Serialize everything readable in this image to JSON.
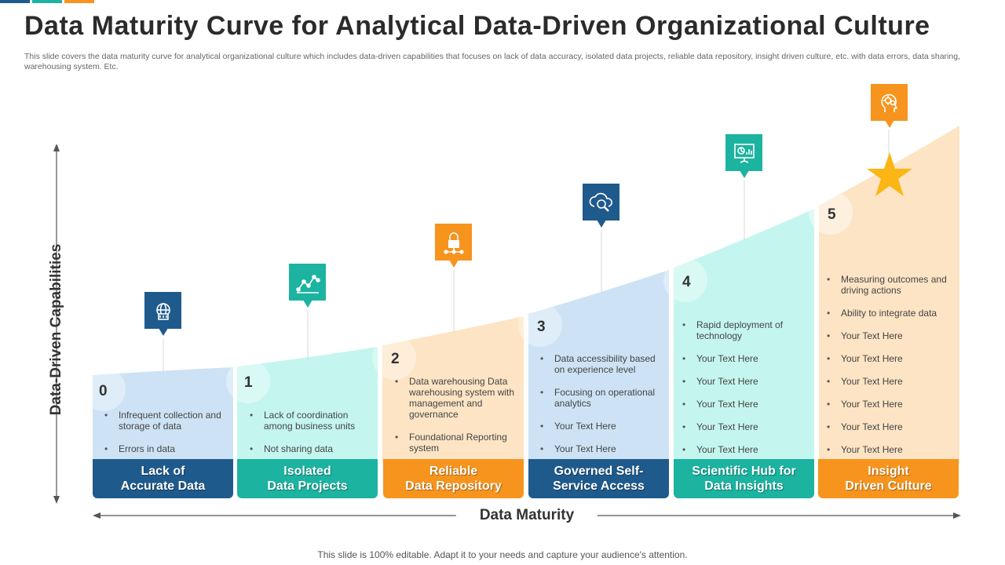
{
  "title": "Data Maturity Curve for Analytical Data-Driven Organizational Culture",
  "subtitle": "This slide covers the data maturity curve for analytical organizational culture which includes data-driven capabilities that focuses on lack of data accuracy, isolated data projects, reliable data repository, insight driven culture, etc. with data errors, data sharing, warehousing system. Etc.",
  "axes": {
    "y_label": "Data-Driven Capabilities",
    "x_label": "Data Maturity"
  },
  "colors": {
    "blue_dark": "#1f5a8c",
    "teal": "#1cb3a0",
    "orange": "#f7941d",
    "light_blue": "#cde3f5",
    "light_teal": "#c4f6ef",
    "light_orange": "#fde4c4"
  },
  "stages": [
    {
      "number": "0",
      "name": "Lack of\nAccurate Data",
      "icon": "circuit-globe-icon",
      "bullets": [
        "Infrequent collection and storage of data",
        "Errors in data"
      ]
    },
    {
      "number": "1",
      "name": "Isolated\nData Projects",
      "icon": "network-chart-icon",
      "bullets": [
        "Lack of coordination among business units",
        "Not sharing data"
      ]
    },
    {
      "number": "2",
      "name": "Reliable\nData Repository",
      "icon": "lock-network-icon",
      "bullets": [
        "Data warehousing Data warehousing system with management and governance",
        "Foundational Reporting system"
      ]
    },
    {
      "number": "3",
      "name": "Governed Self-\nService Access",
      "icon": "cloud-search-icon",
      "bullets": [
        "Data accessibility based on experience level",
        "Focusing on operational analytics",
        "Your Text Here",
        "Your Text Here"
      ]
    },
    {
      "number": "4",
      "name": "Scientific Hub for\nData Insights",
      "icon": "presentation-board-icon",
      "bullets": [
        "Rapid deployment of technology",
        "Your Text Here",
        "Your Text Here",
        "Your Text Here",
        "Your Text Here",
        "Your Text Here"
      ]
    },
    {
      "number": "5",
      "name": "Insight\nDriven Culture",
      "icon": "brain-gears-icon",
      "bullets": [
        "Measuring outcomes and driving actions",
        "Ability to integrate data",
        "Your Text Here",
        "Your Text Here",
        "Your Text Here",
        "Your Text Here",
        "Your Text Here",
        "Your Text Here"
      ]
    }
  ],
  "footer": "This slide is 100% editable. Adapt it to your needs and capture your audience's attention."
}
